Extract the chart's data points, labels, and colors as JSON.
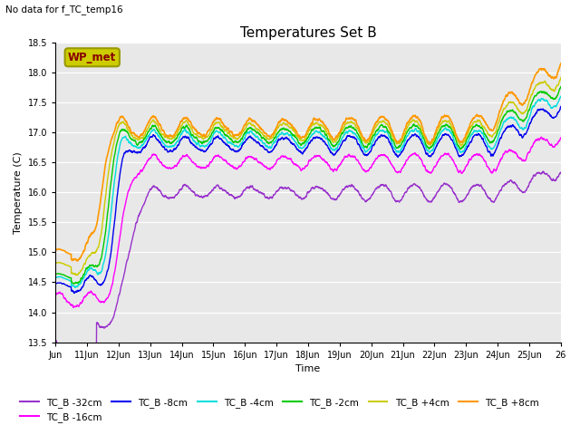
{
  "title": "Temperatures Set B",
  "subtitle": "No data for f_TC_temp16",
  "xlabel": "Time",
  "ylabel": "Temperature (C)",
  "ylim": [
    13.5,
    18.5
  ],
  "xlim_days": [
    10,
    26
  ],
  "x_ticks": [
    10,
    11,
    12,
    13,
    14,
    15,
    16,
    17,
    18,
    19,
    20,
    21,
    22,
    23,
    24,
    25,
    26
  ],
  "x_tick_labels": [
    "Jun",
    "11Jun",
    "12Jun",
    "13Jun",
    "14Jun",
    "15Jun",
    "16Jun",
    "17Jun",
    "18Jun",
    "19Jun",
    "20Jun",
    "21Jun",
    "22Jun",
    "23Jun",
    "24Jun",
    "25Jun",
    "26"
  ],
  "series": [
    {
      "label": "TC_B -32cm",
      "color": "#9933CC",
      "lw": 1.0
    },
    {
      "label": "TC_B -16cm",
      "color": "#FF00FF",
      "lw": 1.0
    },
    {
      "label": "TC_B -8cm",
      "color": "#0000EE",
      "lw": 1.0
    },
    {
      "label": "TC_B -4cm",
      "color": "#00DDDD",
      "lw": 1.0
    },
    {
      "label": "TC_B -2cm",
      "color": "#00CC00",
      "lw": 1.0
    },
    {
      "label": "TC_B +4cm",
      "color": "#CCCC00",
      "lw": 1.0
    },
    {
      "label": "TC_B +8cm",
      "color": "#FF9900",
      "lw": 1.2
    }
  ],
  "legend_box_color": "#CCCC00",
  "legend_box_text": "WP_met",
  "legend_box_text_color": "#880000",
  "plot_bg_color": "#E8E8E8",
  "grid_color": "#FFFFFF",
  "fig_size": [
    6.4,
    4.8
  ],
  "dpi": 100
}
